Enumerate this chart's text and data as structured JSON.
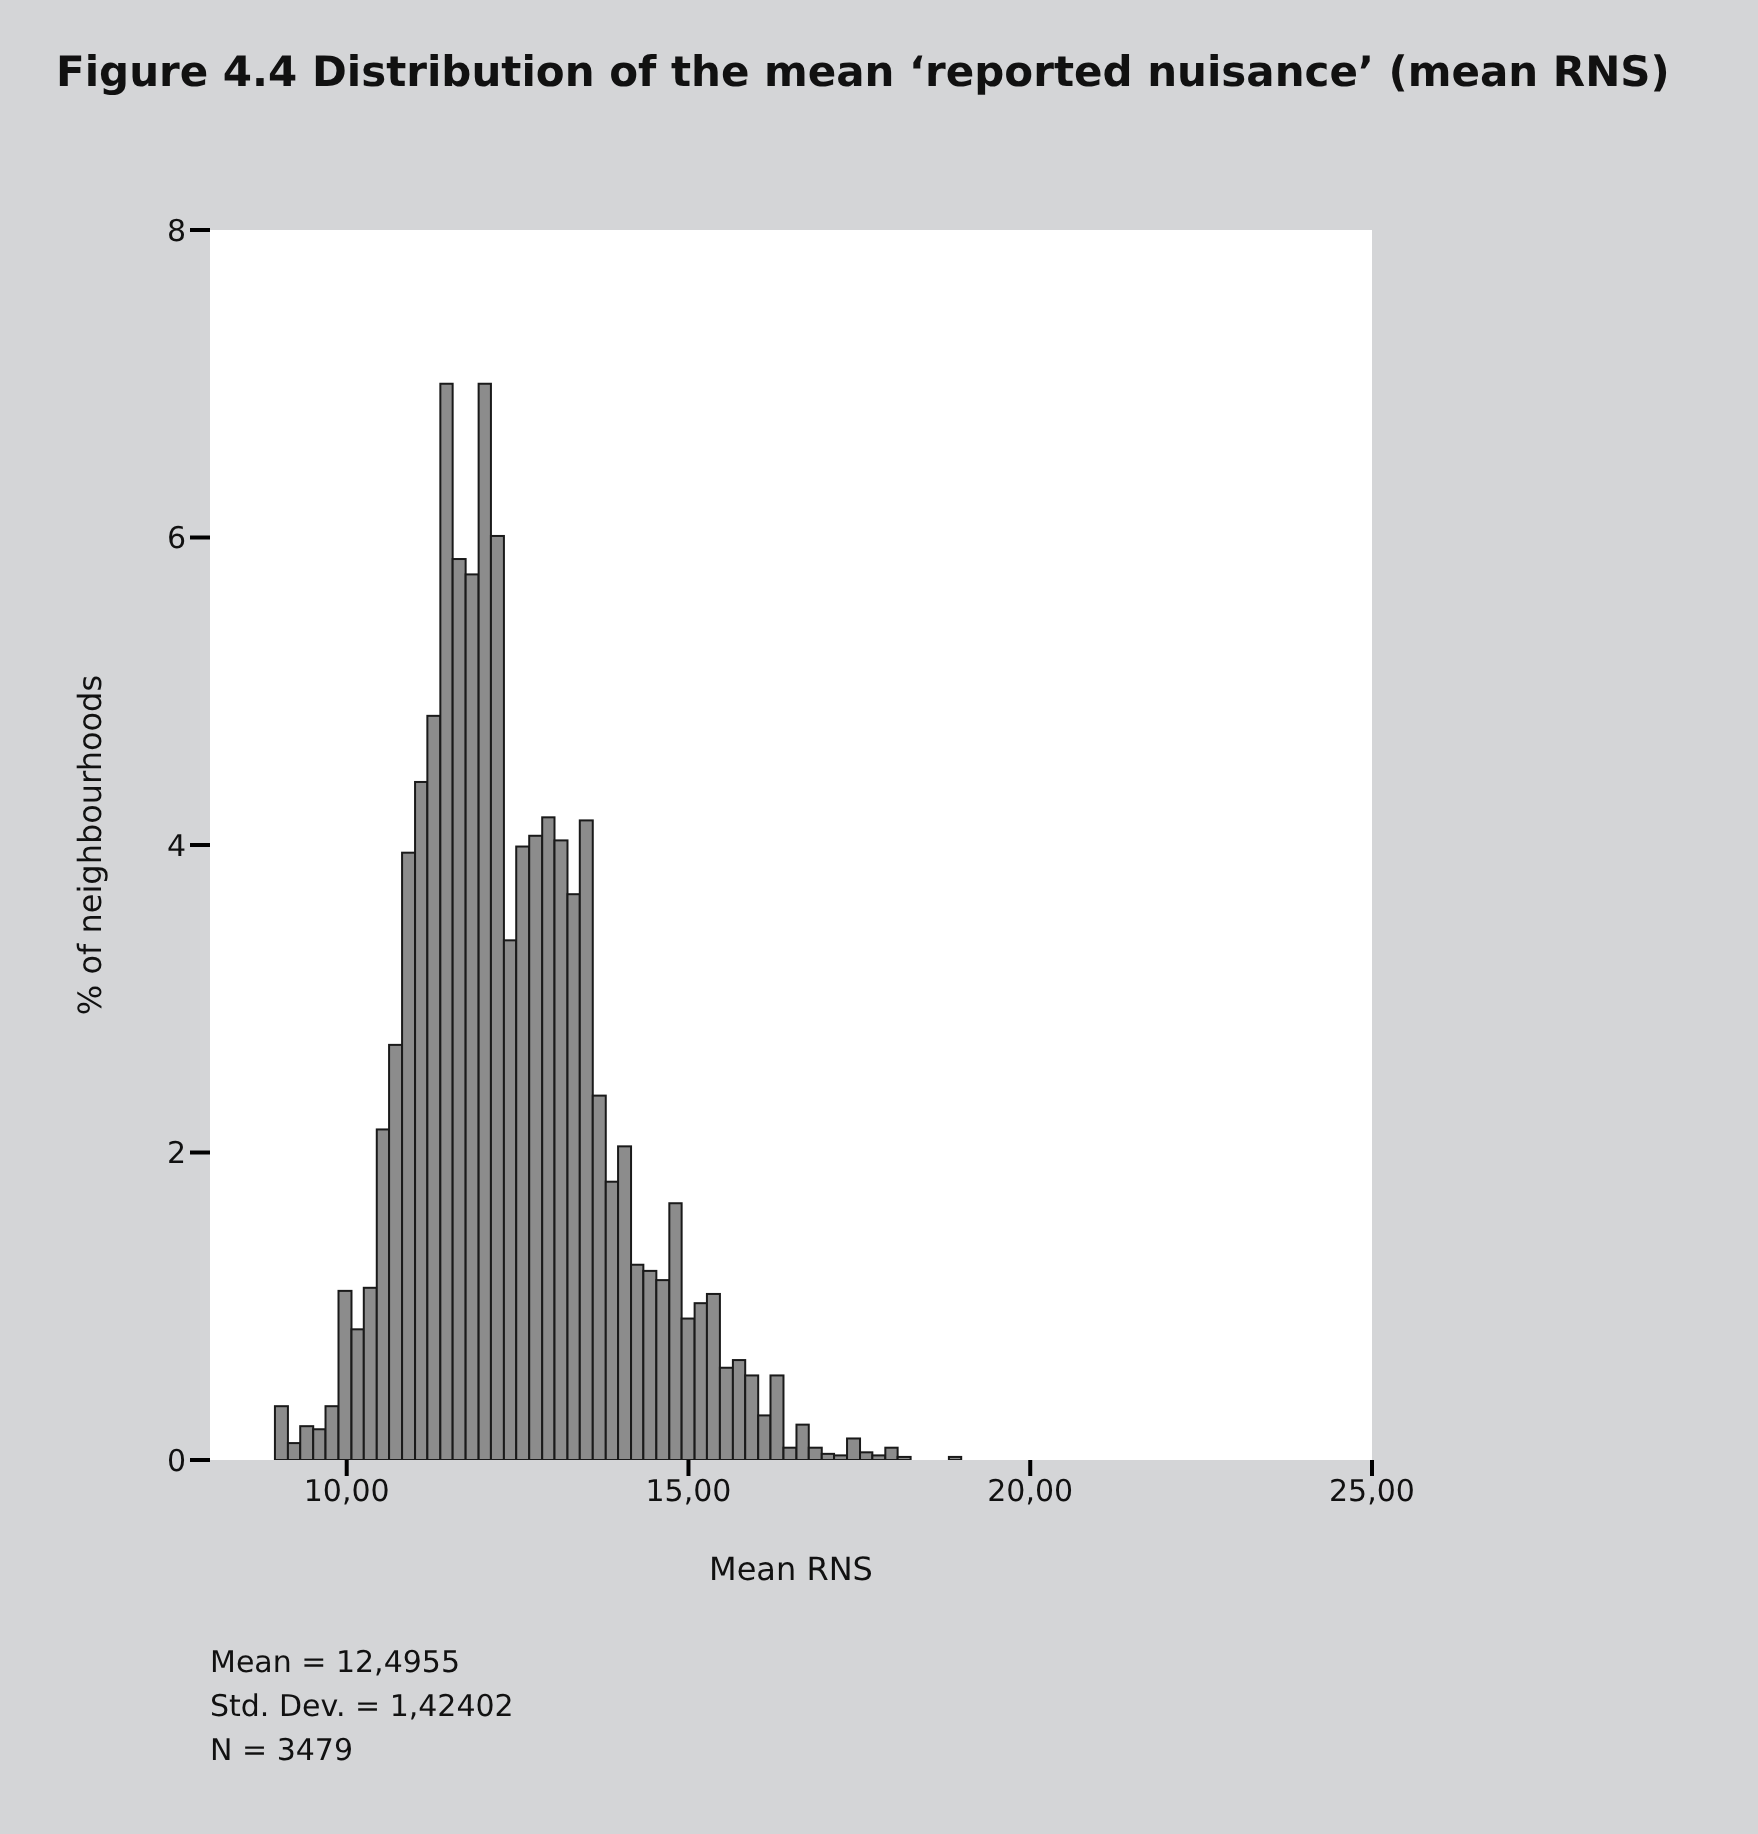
{
  "chart_data": {
    "type": "histogram",
    "title": "Figure 4.4 Distribution of the mean ‘reported nuisance’ (mean RNS)",
    "xlabel": "Mean RNS",
    "ylabel": "% of neighbourhoods",
    "bins": [
      8.95,
      9.14,
      9.32,
      9.51,
      9.69,
      9.88,
      10.07,
      10.25,
      10.44,
      10.62,
      10.81,
      11.0,
      11.18,
      11.37,
      11.55,
      11.74,
      11.93,
      12.11,
      12.3,
      12.48,
      12.67,
      12.86,
      13.04,
      13.23,
      13.41,
      13.6,
      13.79,
      13.97,
      14.16,
      14.34,
      14.53,
      14.72,
      14.9,
      15.09,
      15.27,
      15.46,
      15.65,
      15.83,
      16.02,
      16.2,
      16.39,
      16.58,
      16.76,
      16.95,
      17.13,
      17.32,
      17.51,
      17.69,
      17.88,
      18.06,
      18.25,
      18.81,
      18.99
    ],
    "values": [
      0.35,
      0.11,
      0.22,
      0.2,
      0.35,
      1.1,
      0.85,
      1.12,
      2.15,
      2.7,
      3.95,
      4.41,
      4.84,
      7.0,
      5.86,
      5.76,
      7.0,
      6.01,
      3.38,
      3.99,
      4.06,
      4.18,
      4.03,
      3.68,
      4.16,
      2.37,
      1.81,
      2.04,
      1.27,
      1.23,
      1.17,
      1.67,
      0.92,
      1.02,
      1.08,
      0.6,
      0.65,
      0.55,
      0.29,
      0.55,
      0.08,
      0.23,
      0.08,
      0.04,
      0.03,
      0.14,
      0.05,
      0.03,
      0.08,
      0.02,
      0,
      0.02
    ],
    "color": "#8c8c8c",
    "xlim": [
      8,
      25
    ],
    "xticks": [
      {
        "value": 10,
        "label": "10,00"
      },
      {
        "value": 15,
        "label": "15,00"
      },
      {
        "value": 20,
        "label": "20,00"
      },
      {
        "value": 25,
        "label": "25,00"
      }
    ],
    "ylim": [
      0,
      8
    ],
    "yticks": [
      0,
      2,
      4,
      6,
      8
    ],
    "grid": false,
    "annotations": [
      "Mean = 12,4955",
      "Std. Dev. = 1,42402",
      "N = 3479"
    ]
  }
}
